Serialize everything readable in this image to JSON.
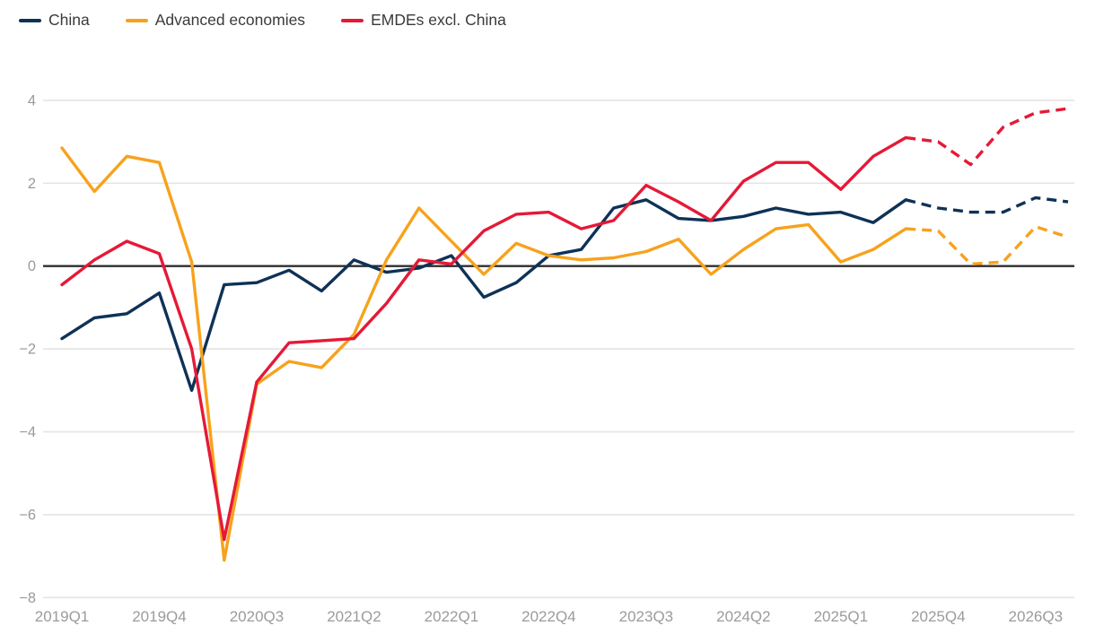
{
  "legend": {
    "items": [
      {
        "label": "China"
      },
      {
        "label": "Advanced economies"
      },
      {
        "label": "EMDEs excl. China"
      }
    ]
  },
  "chart_data": {
    "type": "line",
    "title": "",
    "xlabel": "",
    "ylabel": "",
    "quarters": [
      "2019Q1",
      "2019Q2",
      "2019Q3",
      "2019Q4",
      "2020Q1",
      "2020Q2",
      "2020Q3",
      "2020Q4",
      "2021Q1",
      "2021Q2",
      "2021Q3",
      "2021Q4",
      "2022Q1",
      "2022Q2",
      "2022Q3",
      "2022Q4",
      "2023Q1",
      "2023Q2",
      "2023Q3",
      "2023Q4",
      "2024Q1",
      "2024Q2",
      "2024Q3",
      "2024Q4",
      "2025Q1",
      "2025Q2",
      "2025Q3",
      "2025Q4",
      "2026Q1",
      "2026Q2",
      "2026Q3",
      "2026Q4"
    ],
    "x_tick_indices": [
      0,
      3,
      6,
      9,
      12,
      15,
      18,
      21,
      24,
      27,
      30
    ],
    "x_tick_labels": [
      "2019Q1",
      "2019Q4",
      "2020Q3",
      "2021Q2",
      "2022Q1",
      "2022Q4",
      "2023Q3",
      "2024Q2",
      "2025Q1",
      "2025Q4",
      "2026Q3"
    ],
    "y_ticks": [
      4,
      2,
      0,
      -2,
      -4,
      -6,
      -8
    ],
    "ylim": [
      -8,
      4.6
    ],
    "grid": true,
    "legend_position": "top-left",
    "forecast_start_index": 26,
    "forecast_style": "dashed",
    "series": [
      {
        "name": "China",
        "color": "#0e3257",
        "values": [
          -1.75,
          -1.25,
          -1.15,
          -0.65,
          -3.0,
          -0.45,
          -0.4,
          -0.1,
          -0.6,
          0.15,
          -0.15,
          -0.05,
          0.25,
          -0.75,
          -0.4,
          0.25,
          0.4,
          1.4,
          1.6,
          1.15,
          1.1,
          1.2,
          1.4,
          1.25,
          1.3,
          1.05,
          1.6,
          1.4,
          1.3,
          1.3,
          1.65,
          1.55
        ]
      },
      {
        "name": "Advanced economies",
        "color": "#f7a21c",
        "values": [
          2.85,
          1.8,
          2.65,
          2.5,
          0.1,
          -7.1,
          -2.85,
          -2.3,
          -2.45,
          -1.65,
          0.15,
          1.4,
          0.6,
          -0.2,
          0.55,
          0.25,
          0.15,
          0.2,
          0.35,
          0.65,
          -0.2,
          0.4,
          0.9,
          1.0,
          0.1,
          0.4,
          0.9,
          0.85,
          0.05,
          0.1,
          0.95,
          0.7
        ]
      },
      {
        "name": "EMDEs excl. China",
        "color": "#e51937",
        "values": [
          -0.45,
          0.15,
          0.6,
          0.3,
          -2.0,
          -6.6,
          -2.8,
          -1.85,
          -1.8,
          -1.75,
          -0.9,
          0.15,
          0.05,
          0.85,
          1.25,
          1.3,
          0.9,
          1.1,
          1.95,
          1.55,
          1.1,
          2.05,
          2.5,
          2.5,
          1.85,
          2.65,
          3.1,
          3.0,
          2.45,
          3.35,
          3.7,
          3.8
        ]
      }
    ],
    "colors": {
      "grid": "#e4e4e4",
      "zero_line": "#2e2e2e",
      "axis_label": "#9b9b9b",
      "legend_text": "#3a3a3a",
      "background": "#ffffff"
    }
  }
}
